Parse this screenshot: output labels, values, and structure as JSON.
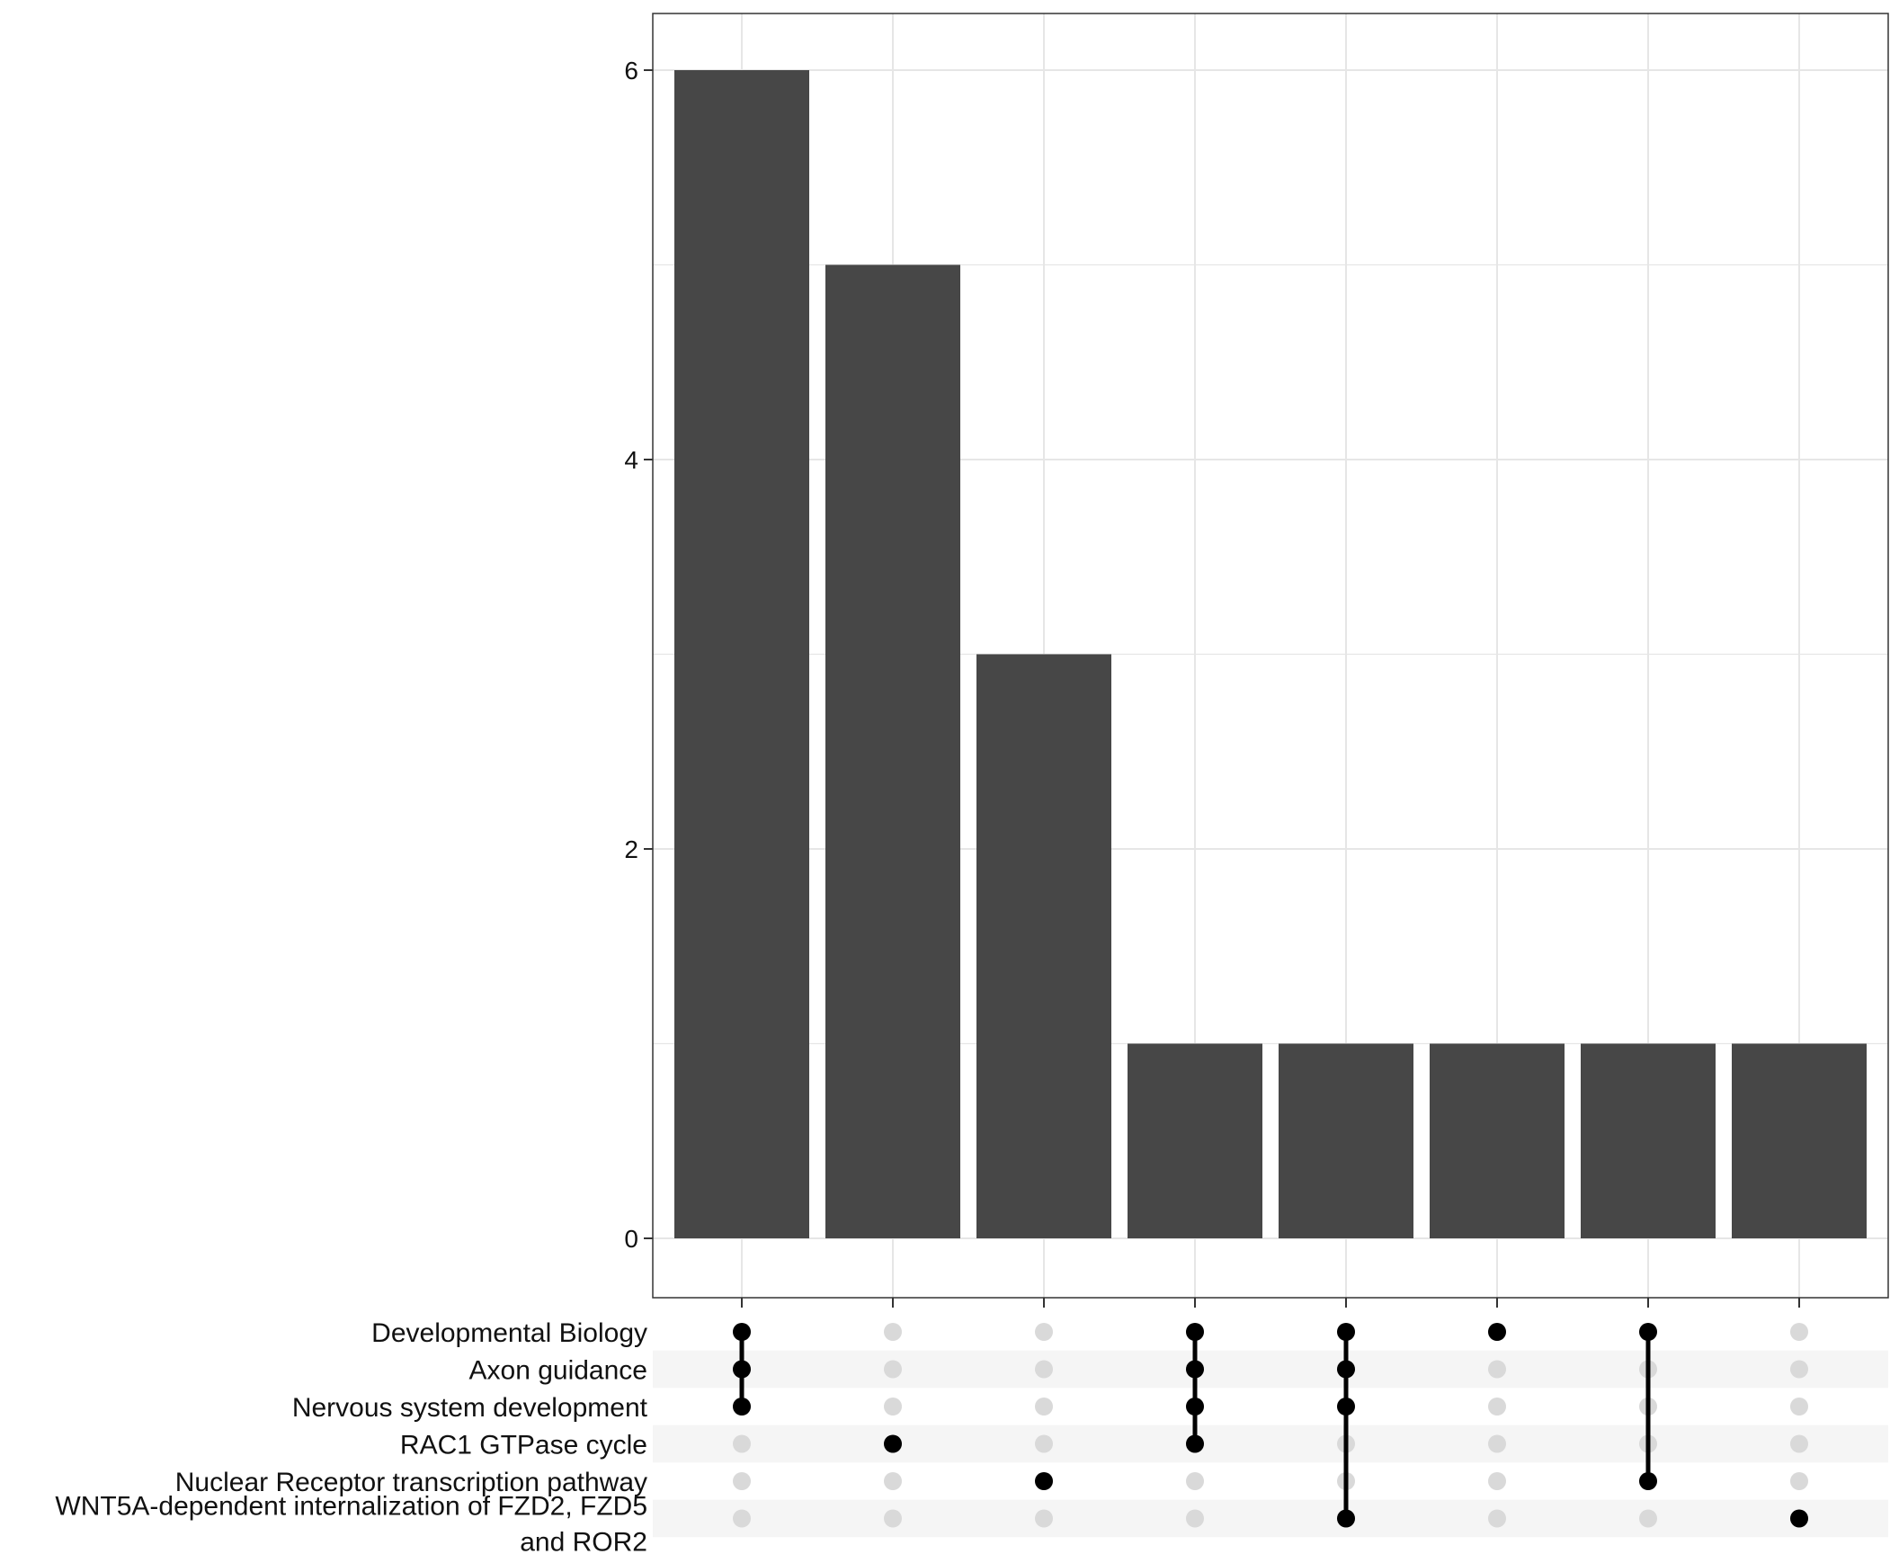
{
  "chart_data": {
    "type": "bar",
    "chart_kind": "upset",
    "title": "",
    "xlabel": "",
    "ylabel": "",
    "ylim": [
      -0.3,
      6.3
    ],
    "yticks": [
      "0",
      "2",
      "4",
      "6"
    ],
    "grid": true,
    "colors": {
      "bar": "#474747",
      "dot_active": "#000000",
      "dot_inactive": "#d9d9d9",
      "stripe": "#f5f5f5",
      "grid": "#e6e6e6",
      "frame": "#333333"
    },
    "sets": [
      {
        "label": "Developmental Biology"
      },
      {
        "label": "Axon guidance"
      },
      {
        "label": "Nervous system development"
      },
      {
        "label": "RAC1 GTPase cycle"
      },
      {
        "label": "Nuclear Receptor transcription pathway"
      },
      {
        "label": "WNT5A-dependent internalization of FZD2, FZD5",
        "label2": "and ROR2"
      }
    ],
    "intersections": [
      {
        "members": [
          0,
          1,
          2
        ],
        "value": 6
      },
      {
        "members": [
          3
        ],
        "value": 5
      },
      {
        "members": [
          4
        ],
        "value": 3
      },
      {
        "members": [
          0,
          1,
          2,
          3
        ],
        "value": 1
      },
      {
        "members": [
          0,
          1,
          2,
          5
        ],
        "value": 1
      },
      {
        "members": [
          0
        ],
        "value": 1
      },
      {
        "members": [
          0,
          4
        ],
        "value": 1
      },
      {
        "members": [
          5
        ],
        "value": 1
      }
    ]
  }
}
